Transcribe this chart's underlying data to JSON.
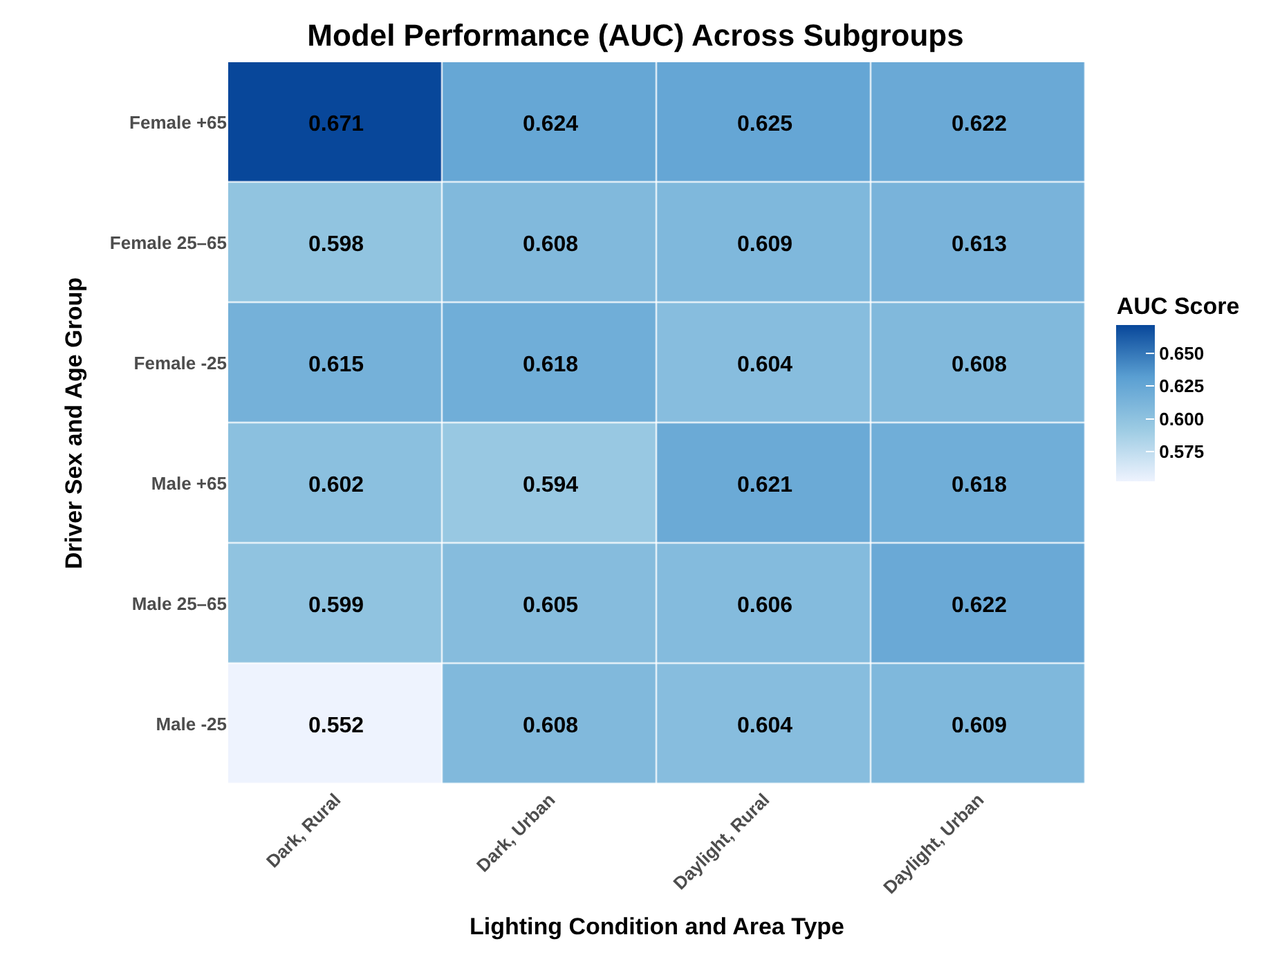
{
  "chart_data": {
    "type": "heatmap",
    "title": "Model Performance (AUC) Across Subgroups",
    "xlabel": "Lighting Condition and Area Type",
    "ylabel": "Driver Sex and Age Group",
    "clabel": "AUC Score",
    "categories": [
      "Dark, Rural",
      "Dark, Urban",
      "Daylight, Rural",
      "Daylight, Urban"
    ],
    "y_categories": [
      "Female +65",
      "Female 25–65",
      "Female -25",
      "Male +65",
      "Male 25–65",
      "Male -25"
    ],
    "cells": [
      [
        0.671,
        0.624,
        0.625,
        0.622
      ],
      [
        0.598,
        0.608,
        0.609,
        0.613
      ],
      [
        0.615,
        0.618,
        0.604,
        0.608
      ],
      [
        0.602,
        0.594,
        0.621,
        0.618
      ],
      [
        0.599,
        0.605,
        0.606,
        0.622
      ],
      [
        0.552,
        0.608,
        0.604,
        0.609
      ]
    ],
    "clim": [
      0.552,
      0.671
    ],
    "cticks": [
      0.575,
      {
        "value": 0.6,
        "label": "0.600"
      },
      0.625,
      {
        "value": 0.65,
        "label": "0.650"
      }
    ],
    "colors": [
      "#eef3fe",
      "#9ccbe3",
      "#5a9fd2",
      "#08479a"
    ],
    "data_labels": true
  }
}
